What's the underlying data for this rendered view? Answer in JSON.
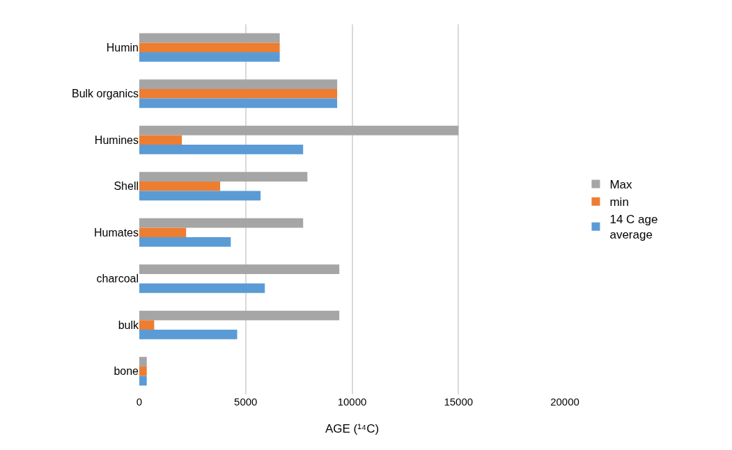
{
  "chart_data": {
    "type": "bar",
    "orientation": "horizontal",
    "xlabel": "AGE (¹⁴C)",
    "categories": [
      "Humin",
      "Bulk organics",
      "Humines",
      "Shell",
      "Humates",
      "charcoal",
      "bulk",
      "bone"
    ],
    "series": [
      {
        "name": "Max",
        "color": "#a5a5a5",
        "values": [
          6600,
          9300,
          15000,
          7900,
          7700,
          9400,
          9400,
          350
        ]
      },
      {
        "name": "min",
        "color": "#ed7d31",
        "values": [
          6600,
          9300,
          2000,
          3800,
          2200,
          null,
          700,
          350
        ]
      },
      {
        "name": "14 C age average",
        "color": "#5b9bd5",
        "values": [
          6600,
          9300,
          7700,
          5700,
          4300,
          5900,
          4600,
          350
        ]
      }
    ],
    "xlim": [
      0,
      20000
    ],
    "xticks": [
      0,
      5000,
      10000,
      15000,
      20000
    ],
    "grid": "x",
    "legend": "right"
  }
}
